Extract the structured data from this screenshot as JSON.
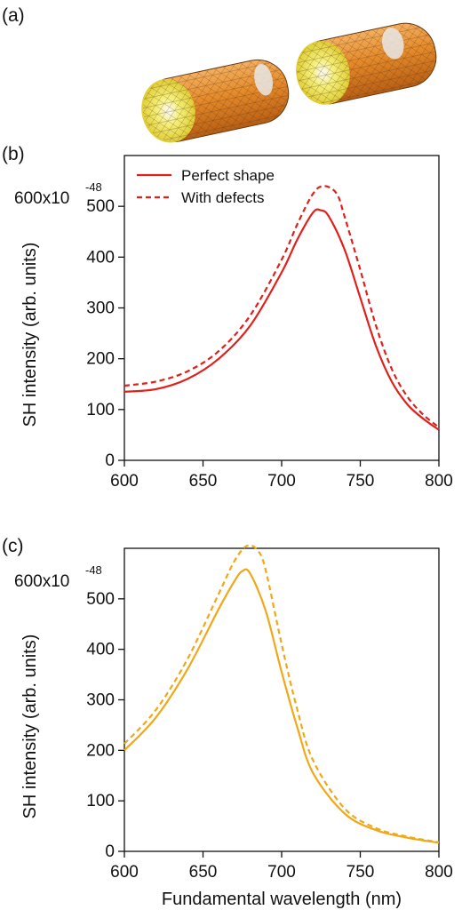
{
  "panels": {
    "a": {
      "label": "(a)"
    },
    "b": {
      "label": "(b)"
    },
    "c": {
      "label": "(c)"
    }
  },
  "colors": {
    "red": "#e0201b",
    "orange": "#f0a818"
  },
  "chart_data": [
    {
      "type": "line",
      "panel": "(b)",
      "xlabel": "",
      "ylabel": "SH intensity (arb. units)",
      "y_multiplier": "600x10",
      "y_multiplier_exp": "-48",
      "xlim": [
        600,
        800
      ],
      "ylim": [
        0,
        600
      ],
      "xticks": [
        600,
        650,
        700,
        750,
        800
      ],
      "yticks": [
        0,
        100,
        200,
        300,
        400,
        500
      ],
      "legend": "top-left",
      "grid": false,
      "series": [
        {
          "name": "Perfect shape",
          "style": "solid",
          "color": "#e0201b",
          "x": [
            600,
            620,
            640,
            660,
            680,
            700,
            710,
            720,
            725,
            730,
            740,
            750,
            760,
            770,
            780,
            790,
            800
          ],
          "y": [
            135,
            140,
            160,
            200,
            265,
            370,
            435,
            488,
            492,
            480,
            415,
            320,
            225,
            155,
            110,
            82,
            60
          ]
        },
        {
          "name": "With defects",
          "style": "dashed",
          "color": "#e0201b",
          "x": [
            600,
            620,
            640,
            660,
            680,
            700,
            710,
            720,
            727,
            735,
            740,
            750,
            760,
            770,
            780,
            790,
            800
          ],
          "y": [
            147,
            155,
            175,
            215,
            285,
            395,
            465,
            525,
            540,
            525,
            480,
            375,
            265,
            180,
            125,
            90,
            65
          ]
        }
      ]
    },
    {
      "type": "line",
      "panel": "(c)",
      "xlabel": "Fundamental wavelength (nm)",
      "ylabel": "SH intensity (arb. units)",
      "y_multiplier": "600x10",
      "y_multiplier_exp": "-48",
      "xlim": [
        600,
        800
      ],
      "ylim": [
        0,
        600
      ],
      "xticks": [
        600,
        650,
        700,
        750,
        800
      ],
      "yticks": [
        0,
        100,
        200,
        300,
        400,
        500
      ],
      "grid": false,
      "series": [
        {
          "style": "solid",
          "color": "#f0a818",
          "x": [
            600,
            620,
            640,
            660,
            670,
            675,
            680,
            690,
            700,
            710,
            720,
            740,
            760,
            780,
            800
          ],
          "y": [
            200,
            265,
            360,
            480,
            535,
            555,
            550,
            475,
            355,
            245,
            155,
            75,
            42,
            27,
            17
          ]
        },
        {
          "style": "dashed",
          "color": "#f0a818",
          "x": [
            600,
            620,
            640,
            660,
            670,
            678,
            685,
            690,
            700,
            710,
            720,
            740,
            760,
            780,
            800
          ],
          "y": [
            213,
            280,
            380,
            510,
            575,
            605,
            595,
            555,
            410,
            280,
            180,
            85,
            46,
            29,
            18
          ]
        }
      ]
    }
  ]
}
